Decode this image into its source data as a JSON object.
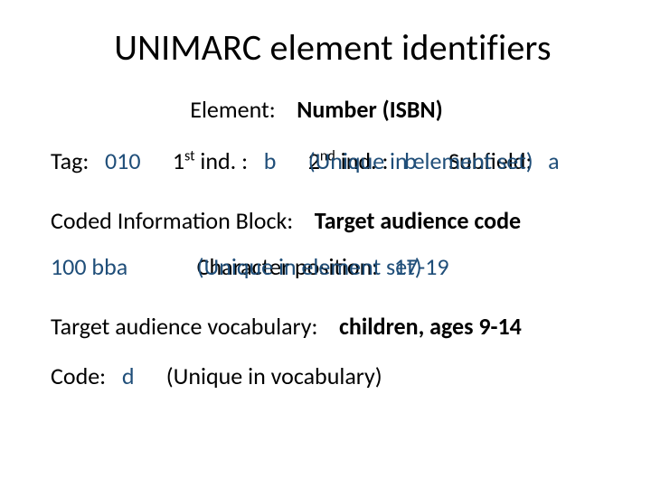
{
  "colors": {
    "text": "#000000",
    "accent": "#1f4e79",
    "background": "#ffffff"
  },
  "title": "UNIMARC element identifiers",
  "element_line": {
    "label": "Element:",
    "value": "Number (ISBN)"
  },
  "tag_line": {
    "tag_label": "Tag:",
    "tag_value": "010",
    "ind1_label_pre": "1",
    "ind1_label_sup": "st",
    "ind1_label_post": " ind. :",
    "ind1_value": "b",
    "ind2_label_pre": "2",
    "ind2_label_sup": "nd",
    "ind2_label_post": " ind. :",
    "ind2_value": "b",
    "subfield_label": "Subfield:",
    "subfield_value": "a",
    "unique_note": "(Unique in element set)"
  },
  "coded_line": {
    "label": "Coded Information Block:",
    "value": "Target audience code"
  },
  "hundred_line": {
    "code": "100 bba",
    "charpos_label": "Character position:",
    "charpos_value": "17-19",
    "unique_note": "(Unique in element set)"
  },
  "vocab_line": {
    "label": "Target audience vocabulary:",
    "value": "children, ages 9-14"
  },
  "code_line": {
    "label": "Code:",
    "value": "d",
    "note": "(Unique in vocabulary)"
  }
}
